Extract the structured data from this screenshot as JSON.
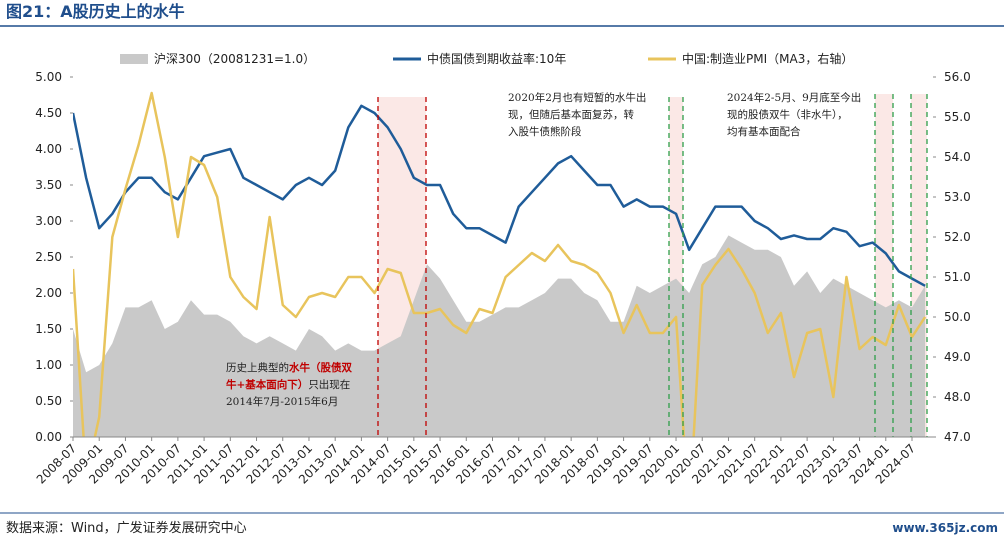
{
  "title": "图21：A股历史上的水牛",
  "source": "数据来源：Wind，广发证券发展研究中心",
  "watermark": "www.365jz.com",
  "chart_data": {
    "type": "combo",
    "categories": [
      "2008-07",
      null,
      "2009-01",
      null,
      "2009-07",
      null,
      "2010-01",
      null,
      "2010-07",
      null,
      "2011-01",
      null,
      "2011-07",
      null,
      "2012-01",
      null,
      "2012-07",
      null,
      "2013-01",
      null,
      "2013-07",
      null,
      "2014-01",
      null,
      "2014-07",
      null,
      "2015-01",
      null,
      "2015-07",
      null,
      "2016-01",
      null,
      "2016-07",
      null,
      "2017-01",
      null,
      "2017-07",
      null,
      "2018-01",
      null,
      "2018-07",
      null,
      "2019-01",
      null,
      "2019-07",
      null,
      "2020-01",
      null,
      "2020-07",
      null,
      "2021-01",
      null,
      "2021-07",
      null,
      "2022-01",
      null,
      "2022-07",
      null,
      "2023-01",
      null,
      "2023-07",
      null,
      "2024-01",
      null,
      "2024-07",
      null
    ],
    "series": [
      {
        "name": "沪深300（20081231=1.0）",
        "kind": "area",
        "color": "#c9c9c9",
        "values": [
          1.5,
          0.9,
          1.0,
          1.3,
          1.8,
          1.8,
          1.9,
          1.5,
          1.6,
          1.9,
          1.7,
          1.7,
          1.6,
          1.4,
          1.3,
          1.4,
          1.3,
          1.2,
          1.5,
          1.4,
          1.2,
          1.3,
          1.2,
          1.2,
          1.3,
          1.4,
          1.9,
          2.4,
          2.2,
          1.9,
          1.6,
          1.6,
          1.7,
          1.8,
          1.8,
          1.9,
          2.0,
          2.2,
          2.2,
          2.0,
          1.9,
          1.6,
          1.6,
          2.1,
          2.0,
          2.1,
          2.2,
          2.0,
          2.4,
          2.5,
          2.8,
          2.7,
          2.6,
          2.6,
          2.5,
          2.1,
          2.3,
          2.0,
          2.2,
          2.1,
          2.0,
          1.9,
          1.8,
          1.9,
          1.8,
          2.1
        ]
      },
      {
        "name": "中债国债到期收益率:10年",
        "kind": "line",
        "color": "#1f5c99",
        "values": [
          4.5,
          3.6,
          2.9,
          3.1,
          3.4,
          3.6,
          3.6,
          3.4,
          3.3,
          3.6,
          3.9,
          3.95,
          4.0,
          3.6,
          3.5,
          3.4,
          3.3,
          3.5,
          3.6,
          3.5,
          3.7,
          4.3,
          4.6,
          4.5,
          4.3,
          4.0,
          3.6,
          3.5,
          3.5,
          3.1,
          2.9,
          2.9,
          2.8,
          2.7,
          3.2,
          3.4,
          3.6,
          3.8,
          3.9,
          3.7,
          3.5,
          3.5,
          3.2,
          3.3,
          3.2,
          3.2,
          3.1,
          2.6,
          2.9,
          3.2,
          3.2,
          3.2,
          3.0,
          2.9,
          2.75,
          2.8,
          2.75,
          2.75,
          2.9,
          2.85,
          2.65,
          2.7,
          2.55,
          2.3,
          2.2,
          2.1
        ]
      },
      {
        "name": "中国:制造业PMI（MA3，右轴）",
        "kind": "line",
        "axis": "y2",
        "color": "#e8c45c",
        "values": [
          51.2,
          46.0,
          47.5,
          52.0,
          53.2,
          54.3,
          55.6,
          54.0,
          52.0,
          54.0,
          53.8,
          53.0,
          51.0,
          50.5,
          50.2,
          52.5,
          50.3,
          50.0,
          50.5,
          50.6,
          50.5,
          51.0,
          51.0,
          50.6,
          51.2,
          51.1,
          50.1,
          50.1,
          50.2,
          49.8,
          49.6,
          50.2,
          50.1,
          51.0,
          51.3,
          51.6,
          51.4,
          51.8,
          51.4,
          51.3,
          51.1,
          50.6,
          49.6,
          50.3,
          49.6,
          49.6,
          50.0,
          45.0,
          50.8,
          51.3,
          51.7,
          51.2,
          50.6,
          49.6,
          50.1,
          48.5,
          49.6,
          49.7,
          48.0,
          51.0,
          49.2,
          49.5,
          49.3,
          50.3,
          49.5,
          50.0
        ]
      }
    ],
    "ylim": [
      0,
      5
    ],
    "yticks": [
      {
        "value": 0,
        "label": "0.00"
      },
      {
        "value": 0.5,
        "label": "0.50"
      },
      {
        "value": 1,
        "label": "1.00"
      },
      {
        "value": 1.5,
        "label": "1.50"
      },
      {
        "value": 2,
        "label": "2.00"
      },
      {
        "value": 2.5,
        "label": "2.50"
      },
      {
        "value": 3,
        "label": "3.00"
      },
      {
        "value": 3.5,
        "label": "3.50"
      },
      {
        "value": 4,
        "label": "4.00"
      },
      {
        "value": 4.5,
        "label": "4.50"
      },
      {
        "value": 5,
        "label": "5.00"
      }
    ],
    "y2lim": [
      47,
      56
    ],
    "y2ticks": [
      {
        "value": 47,
        "label": "47.0"
      },
      {
        "value": 48,
        "label": "48.0"
      },
      {
        "value": 49,
        "label": "49.0"
      },
      {
        "value": 50,
        "label": "50.0"
      },
      {
        "value": 51,
        "label": "51.0"
      },
      {
        "value": 52,
        "label": "52.0"
      },
      {
        "value": 53,
        "label": "53.0"
      },
      {
        "value": 54,
        "label": "54.0"
      },
      {
        "value": 55,
        "label": "55.0"
      },
      {
        "value": 56,
        "label": "56.0"
      }
    ],
    "legend": "top",
    "annotations": [
      {
        "lines": [
          [
            {
              "text": "2020年2月也有短暂的水牛出"
            }
          ],
          [
            {
              "text": "现，但随后基本面复苏，转"
            }
          ],
          [
            {
              "text": "入股牛债熊阶段"
            }
          ]
        ]
      },
      {
        "lines": [
          [
            {
              "text": "2024年2-5月、9月底至今出"
            }
          ],
          [
            {
              "text": "现的股债双牛（非水牛），"
            }
          ],
          [
            {
              "text": "均有基本面配合"
            }
          ]
        ]
      },
      {
        "lines": [
          [
            {
              "text": "历史上典型的"
            },
            {
              "text": "水牛（股债双",
              "emphasis": true
            }
          ],
          [
            {
              "text": "牛+基本面向下）",
              "emphasis": true
            },
            {
              "text": "只出现在"
            }
          ],
          [
            {
              "text": "2014年7月-2015年6月"
            }
          ]
        ]
      }
    ]
  }
}
